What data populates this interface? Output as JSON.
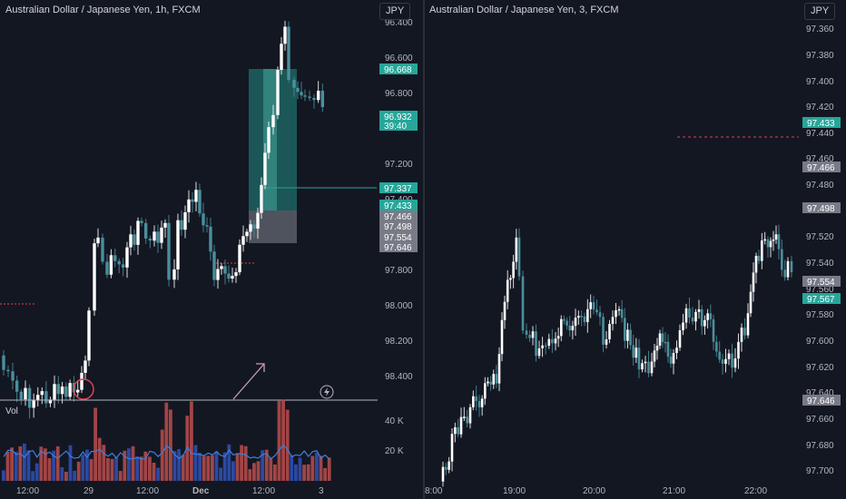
{
  "left_chart": {
    "title": "Australian Dollar / Japanese Yen, 1h, FXCM",
    "currency_button": "JPY",
    "volume_label": "Vol",
    "price_ticks": [
      "96.400",
      "96.600",
      "96.800",
      "97.200",
      "97.400",
      "97.800",
      "98.000",
      "98.200",
      "98.400"
    ],
    "volume_ticks": [
      "40 K",
      "20 K"
    ],
    "time_labels": [
      "12:00",
      "29",
      "12:00",
      "Dec",
      "12:00",
      "3"
    ],
    "price_tags": [
      {
        "text": "96.668",
        "color": "#26a69a"
      },
      {
        "text": "96.932",
        "color": "#26a69a"
      },
      {
        "text": "39:40",
        "color": "#26a69a"
      },
      {
        "text": "97.337",
        "color": "#26a69a"
      },
      {
        "text": "97.433",
        "color": "#26a69a"
      },
      {
        "text": "97.466",
        "color": "#787b86"
      },
      {
        "text": "97.498",
        "color": "#787b86"
      },
      {
        "text": "97.554",
        "color": "#787b86"
      },
      {
        "text": "97.646",
        "color": "#787b86"
      }
    ]
  },
  "right_chart": {
    "title": "Australian Dollar / Japanese Yen, 3, FXCM",
    "currency_button": "JPY",
    "price_ticks": [
      "97.360",
      "97.380",
      "97.400",
      "97.420",
      "97.440",
      "97.460",
      "97.480",
      "97.520",
      "97.540",
      "97.560",
      "97.580",
      "97.600",
      "97.620",
      "97.640",
      "97.660",
      "97.680",
      "97.700"
    ],
    "time_labels": [
      "8:00",
      "19:00",
      "20:00",
      "21:00",
      "22:00"
    ],
    "price_tags": [
      {
        "text": "97.433",
        "color": "#26a69a"
      },
      {
        "text": "97.466",
        "color": "#787b86"
      },
      {
        "text": "97.498",
        "color": "#787b86"
      },
      {
        "text": "97.554",
        "color": "#787b86"
      },
      {
        "text": "97.567",
        "color": "#26a69a"
      },
      {
        "text": "97.646",
        "color": "#787b86"
      }
    ]
  },
  "colors": {
    "up": "#ffffff",
    "down": "#4a8f9c",
    "vol_up": "#b24a4a",
    "vol_down": "#2f4fb0",
    "teal_zone": "#26a69a",
    "grey_zone": "#787b86",
    "annotation": "#c9a0b8",
    "marker": "#e0424f"
  }
}
